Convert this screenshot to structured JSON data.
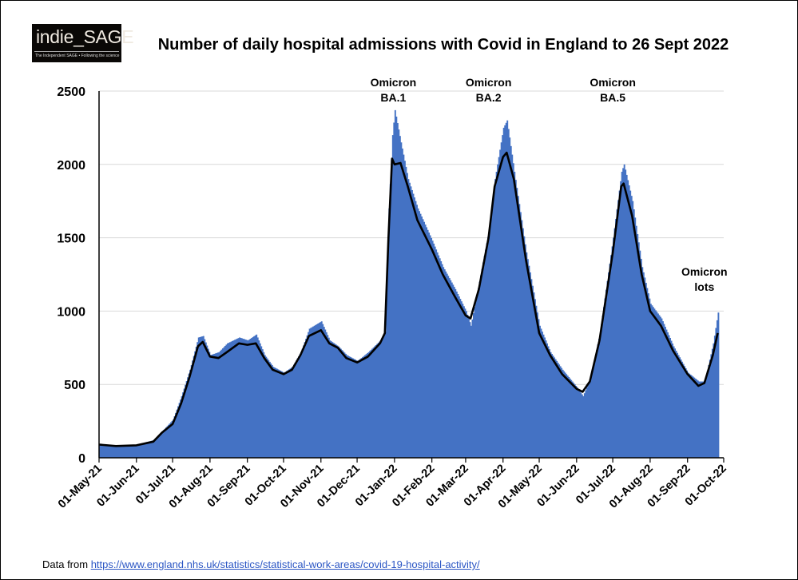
{
  "logo": {
    "name": "indie_SAGE",
    "tagline": "The Independent SAGE • Following the science"
  },
  "footer": {
    "prefix": "Data from ",
    "link": "https://www.england.nhs.uk/statistics/statistical-work-areas/covid-19-hospital-activity/"
  },
  "chart_data": {
    "type": "bar",
    "title": "Number of daily hospital admissions with Covid in England to 26 Sept 2022",
    "xlabel": "",
    "ylabel": "",
    "ylim": [
      0,
      2500
    ],
    "yticks": [
      0,
      500,
      1000,
      1500,
      2000,
      2500
    ],
    "xlim": [
      "2021-05-01",
      "2022-10-01"
    ],
    "xticks": [
      "01-May-21",
      "01-Jun-21",
      "01-Jul-21",
      "01-Aug-21",
      "01-Sep-21",
      "01-Oct-21",
      "01-Nov-21",
      "01-Dec-21",
      "01-Jan-22",
      "01-Feb-22",
      "01-Mar-22",
      "01-Apr-22",
      "01-May-22",
      "01-Jun-22",
      "01-Jul-22",
      "01-Aug-22",
      "01-Sep-22",
      "01-Oct-22"
    ],
    "xtick_dates": [
      "2021-05-01",
      "2021-06-01",
      "2021-07-01",
      "2021-08-01",
      "2021-09-01",
      "2021-10-01",
      "2021-11-01",
      "2021-12-01",
      "2022-01-01",
      "2022-02-01",
      "2022-03-01",
      "2022-04-01",
      "2022-05-01",
      "2022-06-01",
      "2022-07-01",
      "2022-08-01",
      "2022-09-01",
      "2022-10-01"
    ],
    "grid": "horizontal",
    "colors": {
      "bars": "#4472c4",
      "line": "#000000",
      "grid": "#d9d9d9"
    },
    "series": [
      {
        "kind": "bar",
        "x": [
          "2021-05-01",
          "2021-05-15",
          "2021-06-01",
          "2021-06-15",
          "2021-06-22",
          "2021-07-01",
          "2021-07-08",
          "2021-07-15",
          "2021-07-22",
          "2021-07-26",
          "2021-08-01",
          "2021-08-08",
          "2021-08-15",
          "2021-08-25",
          "2021-09-01",
          "2021-09-08",
          "2021-09-15",
          "2021-09-22",
          "2021-10-01",
          "2021-10-08",
          "2021-10-15",
          "2021-10-22",
          "2021-11-01",
          "2021-11-08",
          "2021-11-15",
          "2021-11-22",
          "2021-12-01",
          "2021-12-10",
          "2021-12-20",
          "2021-12-24",
          "2021-12-27",
          "2021-12-30",
          "2022-01-01",
          "2022-01-06",
          "2022-01-12",
          "2022-01-20",
          "2022-02-01",
          "2022-02-10",
          "2022-02-20",
          "2022-03-01",
          "2022-03-05",
          "2022-03-12",
          "2022-03-20",
          "2022-03-25",
          "2022-04-01",
          "2022-04-04",
          "2022-04-10",
          "2022-04-20",
          "2022-05-01",
          "2022-05-10",
          "2022-05-20",
          "2022-06-01",
          "2022-06-06",
          "2022-06-12",
          "2022-06-20",
          "2022-07-01",
          "2022-07-08",
          "2022-07-10",
          "2022-07-17",
          "2022-07-25",
          "2022-08-01",
          "2022-08-10",
          "2022-08-20",
          "2022-09-01",
          "2022-09-10",
          "2022-09-15",
          "2022-09-22",
          "2022-09-26"
        ],
        "values": [
          95,
          80,
          90,
          120,
          180,
          260,
          420,
          600,
          820,
          830,
          700,
          720,
          780,
          820,
          800,
          840,
          700,
          620,
          580,
          620,
          720,
          880,
          930,
          800,
          760,
          700,
          660,
          720,
          800,
          860,
          1700,
          2200,
          2370,
          2150,
          1900,
          1700,
          1480,
          1300,
          1150,
          1000,
          900,
          1200,
          1550,
          1900,
          2250,
          2300,
          1950,
          1400,
          900,
          720,
          600,
          480,
          420,
          540,
          850,
          1500,
          1950,
          2000,
          1750,
          1300,
          1050,
          950,
          760,
          580,
          520,
          520,
          780,
          990
        ]
      },
      {
        "kind": "line",
        "name": "",
        "x": [
          "2021-05-01",
          "2021-05-15",
          "2021-06-01",
          "2021-06-15",
          "2021-06-22",
          "2021-07-01",
          "2021-07-08",
          "2021-07-15",
          "2021-07-22",
          "2021-07-26",
          "2021-08-01",
          "2021-08-08",
          "2021-08-15",
          "2021-08-25",
          "2021-09-01",
          "2021-09-08",
          "2021-09-15",
          "2021-09-22",
          "2021-10-01",
          "2021-10-08",
          "2021-10-15",
          "2021-10-22",
          "2021-11-01",
          "2021-11-08",
          "2021-11-15",
          "2021-11-22",
          "2021-12-01",
          "2021-12-10",
          "2021-12-20",
          "2021-12-24",
          "2021-12-27",
          "2021-12-30",
          "2022-01-01",
          "2022-01-06",
          "2022-01-12",
          "2022-01-20",
          "2022-02-01",
          "2022-02-10",
          "2022-02-20",
          "2022-03-01",
          "2022-03-05",
          "2022-03-12",
          "2022-03-20",
          "2022-03-25",
          "2022-04-01",
          "2022-04-04",
          "2022-04-10",
          "2022-04-20",
          "2022-05-01",
          "2022-05-10",
          "2022-05-20",
          "2022-06-01",
          "2022-06-06",
          "2022-06-12",
          "2022-06-20",
          "2022-07-01",
          "2022-07-08",
          "2022-07-10",
          "2022-07-17",
          "2022-07-25",
          "2022-08-01",
          "2022-08-10",
          "2022-08-20",
          "2022-09-01",
          "2022-09-10",
          "2022-09-15",
          "2022-09-22",
          "2022-09-26"
        ],
        "values": [
          90,
          80,
          85,
          110,
          170,
          230,
          370,
          550,
          760,
          790,
          690,
          680,
          720,
          780,
          770,
          780,
          680,
          600,
          570,
          600,
          700,
          830,
          870,
          780,
          750,
          680,
          650,
          690,
          780,
          850,
          1500,
          2040,
          2000,
          2010,
          1850,
          1620,
          1420,
          1250,
          1100,
          970,
          950,
          1150,
          1500,
          1850,
          2050,
          2080,
          1900,
          1350,
          850,
          700,
          570,
          470,
          450,
          520,
          800,
          1400,
          1850,
          1870,
          1650,
          1250,
          1000,
          900,
          730,
          570,
          490,
          510,
          700,
          850
        ]
      }
    ],
    "annotations": [
      {
        "text": [
          "Omicron",
          "BA.1"
        ],
        "date": "2021-12-31"
      },
      {
        "text": [
          "Omicron",
          "BA.2"
        ],
        "date": "2022-03-20"
      },
      {
        "text": [
          "Omicron",
          "BA.5"
        ],
        "date": "2022-07-01"
      },
      {
        "text": [
          "Omicron",
          "lots"
        ],
        "date": "2022-09-15"
      }
    ]
  }
}
